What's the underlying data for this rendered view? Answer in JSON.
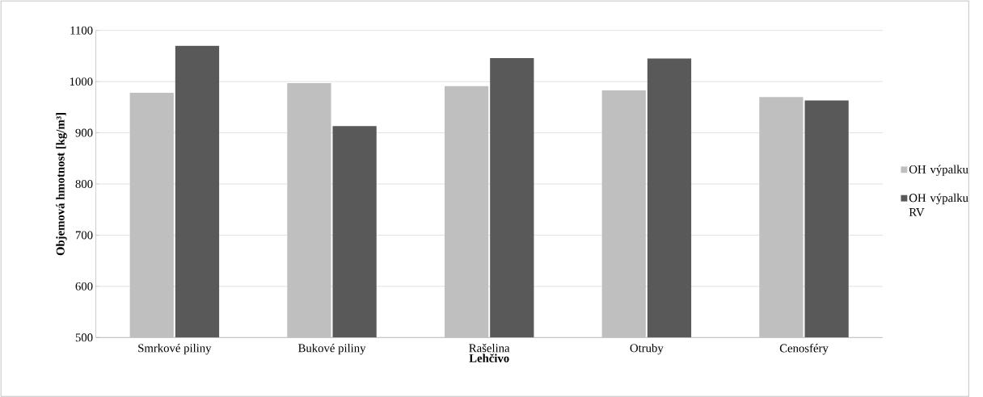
{
  "chart_data": {
    "type": "bar",
    "xlabel": "Lehčivo",
    "ylabel": "Objemová hmotnost [kg/m³]",
    "categories": [
      "Smrkové piliny",
      "Bukové piliny",
      "Rašelina",
      "Otruby",
      "Cenosféry"
    ],
    "series": [
      {
        "name": "OH výpalku",
        "color": "#bfbfbf",
        "values": [
          978,
          997,
          991,
          983,
          970
        ]
      },
      {
        "name": "OH výpalku RV",
        "color": "#595959",
        "values": [
          1070,
          913,
          1046,
          1045,
          963
        ]
      }
    ],
    "ylim": [
      500,
      1100
    ],
    "yticks": [
      500,
      600,
      700,
      800,
      900,
      1000,
      1100
    ],
    "grid": "y",
    "legend": "right"
  }
}
